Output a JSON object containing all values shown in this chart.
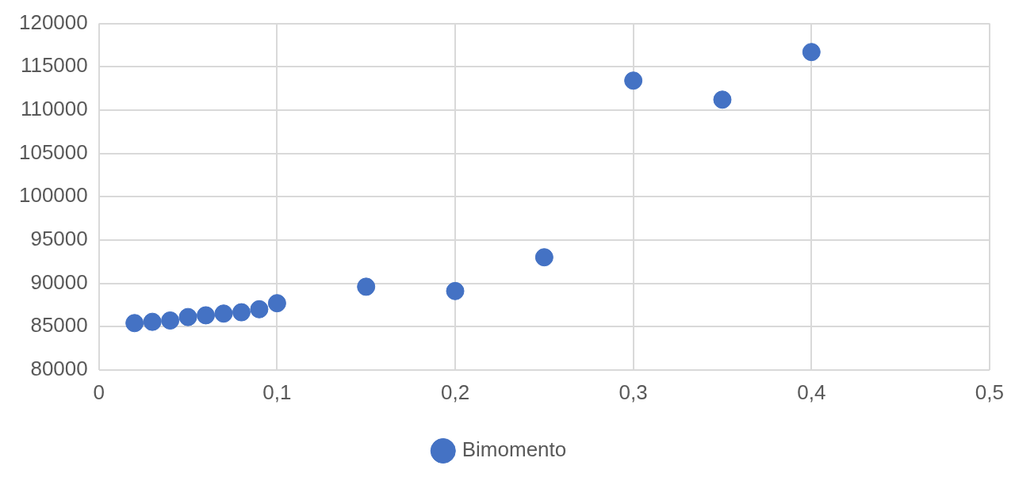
{
  "chart_data": {
    "type": "scatter",
    "x": [
      0.02,
      0.03,
      0.04,
      0.05,
      0.06,
      0.07,
      0.08,
      0.09,
      0.1,
      0.15,
      0.2,
      0.25,
      0.3,
      0.35,
      0.4
    ],
    "series": [
      {
        "name": "Bimomento",
        "color": "#4472c4",
        "values": [
          85400,
          85550,
          85700,
          86100,
          86300,
          86500,
          86650,
          87000,
          87700,
          89600,
          89100,
          93000,
          113400,
          111200,
          116700
        ]
      }
    ],
    "xlim": [
      0,
      0.5
    ],
    "xticks": [
      0,
      {
        "value": 0.1,
        "label": "0,1"
      },
      {
        "value": 0.2,
        "label": "0,2"
      },
      {
        "value": 0.3,
        "label": "0,3"
      },
      {
        "value": 0.4,
        "label": "0,4"
      },
      {
        "value": 0.5,
        "label": "0,5"
      }
    ],
    "ylim": [
      80000,
      120000
    ],
    "yticks": [
      80000,
      85000,
      90000,
      95000,
      100000,
      105000,
      110000,
      115000,
      120000
    ],
    "grid": true,
    "legend": "bottom",
    "marker": "circle"
  }
}
